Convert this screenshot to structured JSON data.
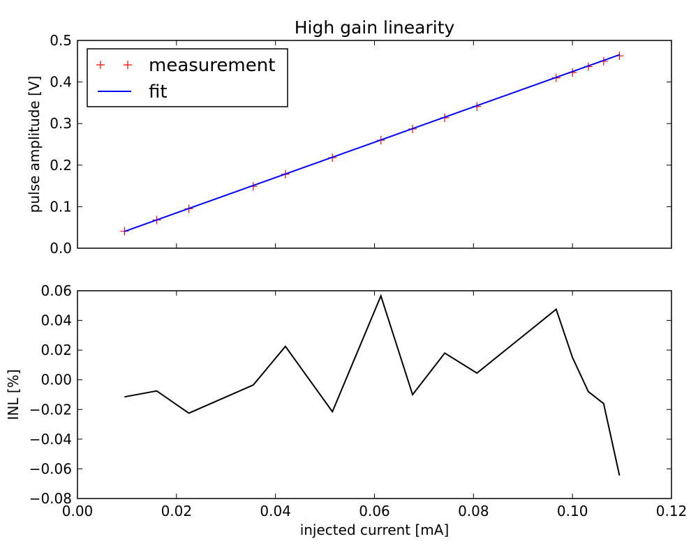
{
  "chart_data": [
    {
      "type": "scatter+line",
      "title": "High gain linearity",
      "xlabel": "",
      "ylabel": "pulse amplitude [V]",
      "xlim": [
        0.0,
        0.12
      ],
      "ylim": [
        0.0,
        0.5
      ],
      "xticks": [
        0.0,
        0.02,
        0.04,
        0.06,
        0.08,
        0.1,
        0.12
      ],
      "yticks": [
        0.0,
        0.1,
        0.2,
        0.3,
        0.4,
        0.5
      ],
      "ytick_labels": [
        "0.0",
        "0.1",
        "0.2",
        "0.3",
        "0.4",
        "0.5"
      ],
      "legend_position": "upper-left",
      "series": [
        {
          "name": "measurement",
          "style": "markers-plus",
          "color": "#ff0000",
          "x": [
            0.0095,
            0.016,
            0.0225,
            0.0355,
            0.042,
            0.0515,
            0.0613,
            0.0677,
            0.0742,
            0.0807,
            0.0967,
            0.1,
            0.1032,
            0.1063,
            0.1095
          ],
          "y": [
            0.041,
            0.068,
            0.095,
            0.149,
            0.178,
            0.218,
            0.26,
            0.287,
            0.314,
            0.341,
            0.41,
            0.423,
            0.437,
            0.45,
            0.463
          ]
        },
        {
          "name": "fit",
          "style": "line",
          "color": "#0000ff",
          "x": [
            0.0095,
            0.1095
          ],
          "y": [
            0.0405,
            0.4655
          ]
        }
      ]
    },
    {
      "type": "line",
      "title": "",
      "xlabel": "injected current [mA]",
      "ylabel": "INL [%]",
      "xlim": [
        0.0,
        0.12
      ],
      "ylim": [
        -0.08,
        0.06
      ],
      "xticks": [
        0.0,
        0.02,
        0.04,
        0.06,
        0.08,
        0.1,
        0.12
      ],
      "xtick_labels": [
        "0.00",
        "0.02",
        "0.04",
        "0.06",
        "0.08",
        "0.10",
        "0.12"
      ],
      "yticks": [
        -0.08,
        -0.06,
        -0.04,
        -0.02,
        0.0,
        0.02,
        0.04,
        0.06
      ],
      "ytick_labels": [
        "−0.08",
        "−0.06",
        "−0.04",
        "−0.02",
        "0.00",
        "0.02",
        "0.04",
        "0.06"
      ],
      "series": [
        {
          "name": "INL",
          "color": "#000000",
          "x": [
            0.0095,
            0.016,
            0.0225,
            0.0355,
            0.042,
            0.0515,
            0.0613,
            0.0677,
            0.0742,
            0.0807,
            0.0967,
            0.1,
            0.1032,
            0.1063,
            0.1095
          ],
          "y": [
            -0.0115,
            -0.0075,
            -0.0225,
            -0.0035,
            0.0225,
            -0.0215,
            0.0565,
            -0.01,
            0.018,
            0.0045,
            0.0475,
            0.015,
            -0.008,
            -0.016,
            -0.0645
          ]
        }
      ]
    }
  ]
}
